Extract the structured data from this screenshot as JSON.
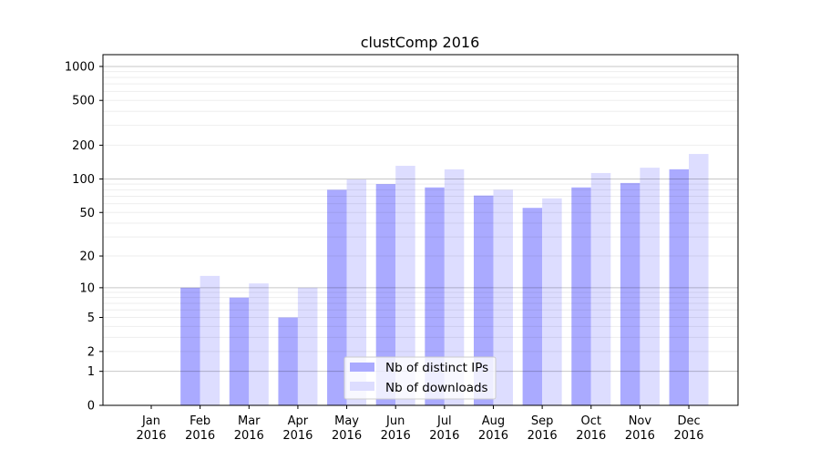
{
  "chart_data": {
    "type": "bar",
    "title": "clustComp 2016",
    "xlabel": "",
    "ylabel": "",
    "yscale": "symlog (log10(1+y))",
    "ylim": [
      0,
      1200
    ],
    "yticks": [
      0,
      1,
      2,
      5,
      10,
      20,
      50,
      100,
      200,
      500,
      1000
    ],
    "grid": true,
    "legend_position": "bottom-center",
    "categories": [
      "Jan\n2016",
      "Feb\n2016",
      "Mar\n2016",
      "Apr\n2016",
      "May\n2016",
      "Jun\n2016",
      "Jul\n2016",
      "Aug\n2016",
      "Sep\n2016",
      "Oct\n2016",
      "Nov\n2016",
      "Dec\n2016"
    ],
    "series": [
      {
        "name": "Nb of distinct IPs",
        "color": "#aaaaff",
        "values": [
          0,
          10,
          8,
          5,
          80,
          90,
          84,
          71,
          55,
          84,
          92,
          122
        ]
      },
      {
        "name": "Nb of downloads",
        "color": "#ddddff",
        "values": [
          0,
          13,
          11,
          10,
          99,
          131,
          122,
          80,
          67,
          113,
          126,
          167
        ]
      }
    ]
  }
}
